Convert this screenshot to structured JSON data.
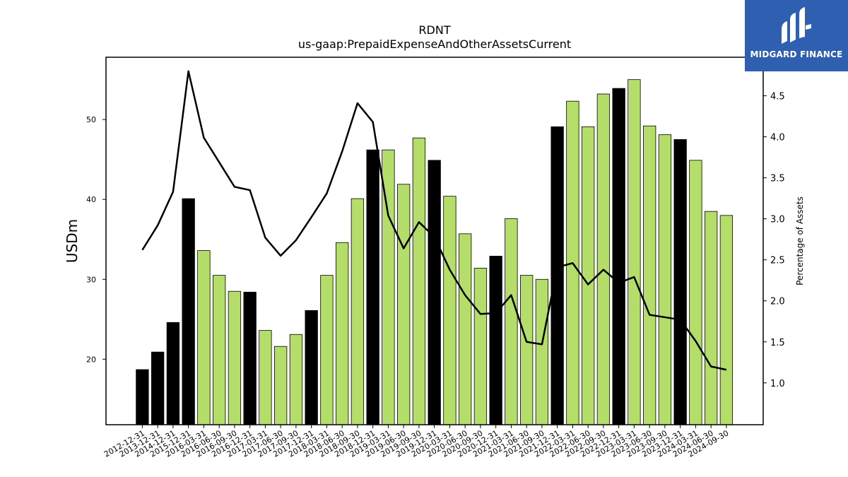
{
  "chart_data": {
    "type": "bar",
    "title": "RDNT",
    "subtitle": "us-gaap:PrepaidExpenseAndOtherAssetsCurrent",
    "ylabel": "USDm",
    "y2label": "Percentage of Assets",
    "ylim": [
      11.8,
      57.8
    ],
    "y2lim": [
      0.49,
      4.97
    ],
    "yticks": [
      20,
      30,
      40,
      50
    ],
    "y2ticks": [
      1.0,
      1.5,
      2.0,
      2.5,
      3.0,
      3.5,
      4.0,
      4.5
    ],
    "categories": [
      "2012-12-31",
      "2013-12-31",
      "2014-12-31",
      "2015-12-31",
      "2016-03-31",
      "2016-06-30",
      "2016-09-30",
      "2016-12-31",
      "2017-03-31",
      "2017-06-30",
      "2017-09-30",
      "2017-12-31",
      "2018-03-31",
      "2018-06-30",
      "2018-09-30",
      "2018-12-31",
      "2019-03-31",
      "2019-06-30",
      "2019-09-30",
      "2019-12-31",
      "2020-03-31",
      "2020-06-30",
      "2020-09-30",
      "2020-12-31",
      "2021-03-31",
      "2021-06-30",
      "2021-09-30",
      "2021-12-31",
      "2022-03-31",
      "2022-06-30",
      "2022-09-30",
      "2022-12-31",
      "2023-03-31",
      "2023-06-30",
      "2023-09-30",
      "2023-12-31",
      "2024-03-31",
      "2024-06-30",
      "2024-09-30"
    ],
    "series": [
      {
        "kind": "bar",
        "values": [
          18.7,
          20.9,
          24.6,
          40.1,
          33.6,
          30.5,
          28.5,
          28.4,
          23.6,
          21.6,
          23.1,
          26.1,
          30.5,
          34.6,
          40.1,
          46.2,
          46.2,
          41.9,
          47.7,
          44.9,
          40.4,
          35.7,
          31.4,
          32.9,
          37.6,
          30.5,
          30.0,
          49.1,
          52.3,
          49.1,
          53.2,
          53.9,
          55.0,
          49.2,
          48.1,
          47.5,
          44.9,
          38.5,
          38.0
        ]
      },
      {
        "kind": "line",
        "values": [
          2.62,
          2.92,
          3.33,
          4.8,
          3.99,
          3.69,
          3.39,
          3.35,
          2.77,
          2.55,
          2.74,
          3.02,
          3.31,
          3.82,
          4.41,
          4.18,
          3.04,
          2.64,
          2.96,
          2.78,
          2.38,
          2.07,
          1.84,
          1.85,
          2.07,
          1.5,
          1.47,
          2.41,
          2.46,
          2.2,
          2.38,
          2.22,
          2.29,
          1.83,
          1.8,
          1.77,
          1.51,
          1.2,
          1.16
        ]
      }
    ],
    "bar_colors": {
      "annual": "#000000",
      "quarterly": "#b5dd6a"
    },
    "bar_is_annual": [
      true,
      true,
      true,
      true,
      false,
      false,
      false,
      true,
      false,
      false,
      false,
      true,
      false,
      false,
      false,
      true,
      false,
      false,
      false,
      true,
      false,
      false,
      false,
      true,
      false,
      false,
      false,
      true,
      false,
      false,
      false,
      true,
      false,
      false,
      false,
      true,
      false,
      false,
      false
    ],
    "line_color": "#000000",
    "grid": false,
    "legend": "none"
  },
  "logo": {
    "brand_text": "MIDGARD FINANCE",
    "background": "#2f5fb0"
  }
}
